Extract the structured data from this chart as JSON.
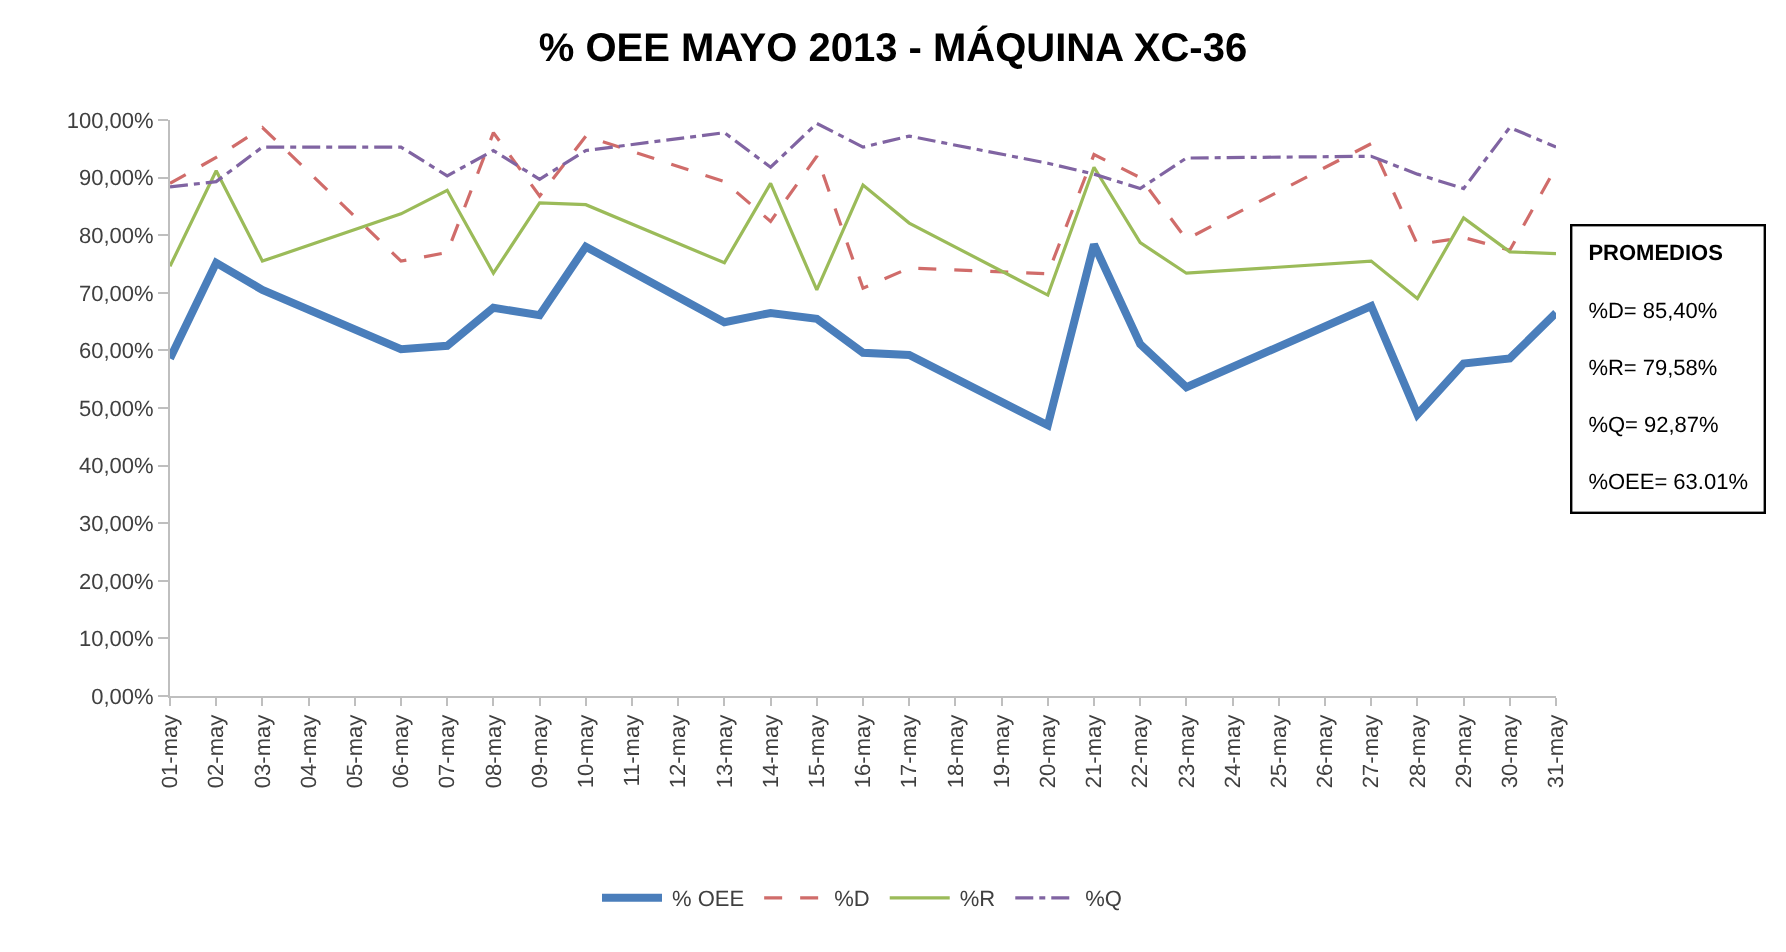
{
  "chart_data": {
    "type": "line",
    "title": "% OEE MAYO 2013 - MÁQUINA XC-36",
    "categories": [
      "01-may",
      "02-may",
      "03-may",
      "04-may",
      "05-may",
      "06-may",
      "07-may",
      "08-may",
      "09-may",
      "10-may",
      "11-may",
      "12-may",
      "13-may",
      "14-may",
      "15-may",
      "16-may",
      "17-may",
      "18-may",
      "19-may",
      "20-may",
      "21-may",
      "22-may",
      "23-may",
      "24-may",
      "25-may",
      "26-may",
      "27-may",
      "28-may",
      "29-may",
      "30-may",
      "31-may"
    ],
    "series": [
      {
        "name": "% OEE",
        "color": "#4a7ebb",
        "line_style": "solid",
        "x": [
          "01-may",
          "02-may",
          "03-may",
          "06-may",
          "07-may",
          "08-may",
          "09-may",
          "10-may",
          "13-may",
          "14-may",
          "15-may",
          "16-may",
          "17-may",
          "20-may",
          "21-may",
          "22-may",
          "23-may",
          "27-may",
          "28-may",
          "29-may",
          "30-may",
          "31-may"
        ],
        "values": [
          58.6,
          75.2,
          70.5,
          60.2,
          60.8,
          67.4,
          66.1,
          78.0,
          64.9,
          66.5,
          65.5,
          59.6,
          59.2,
          47.0,
          78.4,
          61.1,
          53.6,
          67.7,
          48.9,
          57.7,
          58.6,
          66.5
        ]
      },
      {
        "name": "%D",
        "color": "#d06c6a",
        "line_style": "dashed",
        "x": [
          "01-may",
          "02-may",
          "03-may",
          "06-may",
          "07-may",
          "08-may",
          "09-may",
          "10-may",
          "13-may",
          "14-may",
          "15-may",
          "16-may",
          "17-may",
          "20-may",
          "21-may",
          "22-may",
          "23-may",
          "27-may",
          "28-may",
          "29-may",
          "30-may",
          "31-may"
        ],
        "values": [
          89.0,
          93.5,
          98.7,
          75.5,
          77.0,
          97.8,
          86.8,
          97.2,
          89.3,
          82.4,
          93.7,
          70.8,
          74.3,
          73.3,
          94.0,
          90.0,
          79.3,
          95.9,
          78.4,
          79.6,
          77.4,
          91.8
        ]
      },
      {
        "name": "%R",
        "color": "#9bbb59",
        "line_style": "solid",
        "x": [
          "01-may",
          "02-may",
          "03-may",
          "06-may",
          "07-may",
          "08-may",
          "09-may",
          "10-may",
          "13-may",
          "14-may",
          "15-may",
          "16-may",
          "17-may",
          "20-may",
          "21-may",
          "22-may",
          "23-may",
          "27-may",
          "28-may",
          "29-may",
          "30-may",
          "31-may"
        ],
        "values": [
          74.6,
          91.2,
          75.5,
          83.7,
          87.8,
          73.4,
          85.6,
          85.3,
          75.2,
          89.0,
          70.5,
          88.7,
          82.1,
          69.6,
          91.8,
          78.7,
          73.4,
          75.5,
          69.0,
          83.0,
          77.1,
          76.8
        ]
      },
      {
        "name": "%Q",
        "color": "#8064a2",
        "line_style": "dashdot",
        "x": [
          "01-may",
          "02-may",
          "03-may",
          "06-may",
          "07-may",
          "08-may",
          "09-may",
          "10-may",
          "13-may",
          "14-may",
          "15-may",
          "16-may",
          "17-may",
          "20-may",
          "21-may",
          "22-may",
          "23-may",
          "27-may",
          "28-may",
          "29-may",
          "30-may",
          "31-may"
        ],
        "values": [
          88.4,
          89.3,
          95.3,
          95.3,
          90.3,
          94.7,
          89.7,
          94.7,
          97.8,
          91.8,
          99.4,
          95.3,
          97.2,
          92.5,
          90.6,
          88.1,
          93.4,
          93.7,
          90.6,
          88.1,
          98.7,
          95.3
        ]
      }
    ],
    "ylim": [
      0,
      100
    ],
    "yticks": [
      {
        "value": 0,
        "label": "0,00%"
      },
      {
        "value": 10,
        "label": "10,00%"
      },
      {
        "value": 20,
        "label": "20,00%"
      },
      {
        "value": 30,
        "label": "30,00%"
      },
      {
        "value": 40,
        "label": "40,00%"
      },
      {
        "value": 50,
        "label": "50,00%"
      },
      {
        "value": 60,
        "label": "60,00%"
      },
      {
        "value": 70,
        "label": "70,00%"
      },
      {
        "value": 80,
        "label": "80,00%"
      },
      {
        "value": 90,
        "label": "90,00%"
      },
      {
        "value": 100,
        "label": "100,00%"
      }
    ],
    "annotations": [
      "PROMEDIOS",
      "%D= 85,40%",
      "%R= 79,58%",
      "%Q= 92,87%",
      "%OEE= 63.01%"
    ],
    "legend": "bottom",
    "grid": false,
    "marker": "none"
  }
}
